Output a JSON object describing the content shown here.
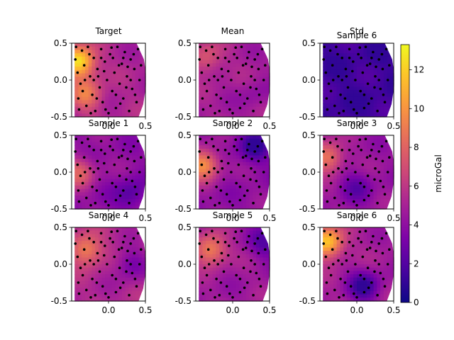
{
  "colors": {
    "colormap": "plasma",
    "points": "#000000",
    "axes": "#000000"
  },
  "chart_data": {
    "type": "contour",
    "colormap": "plasma",
    "x_ticks": [
      "0.0",
      "0.5"
    ],
    "y_ticks": [
      "0.5",
      "0.0",
      "-0.5"
    ],
    "xlim": [
      -0.5,
      0.5
    ],
    "ylim": [
      -0.5,
      0.5
    ],
    "colorbar": {
      "label": "microGal",
      "min": 0,
      "max": 13.3,
      "ticks": [
        "0",
        "2",
        "4",
        "6",
        "8",
        "10",
        "12"
      ]
    },
    "panels": [
      {
        "title": "Target",
        "field_min": 1.0,
        "field_max": 13.0,
        "hotspots": [
          {
            "x": -0.4,
            "y": 0.25,
            "v": 13.0
          },
          {
            "x": -0.3,
            "y": -0.2,
            "v": 9.0
          }
        ]
      },
      {
        "title": "Mean",
        "field_min": 3.5,
        "field_max": 7.5,
        "hotspots": [
          {
            "x": -0.35,
            "y": 0.3,
            "v": 7.5
          },
          {
            "x": 0.3,
            "y": -0.2,
            "v": 4.0
          }
        ]
      },
      {
        "title": "Std",
        "field_min": 1.0,
        "field_max": 2.2,
        "hotspots": [
          {
            "x": -0.3,
            "y": 0.3,
            "v": 2.2
          }
        ]
      },
      {
        "title": "Sample 6",
        "field_min": 1.0,
        "field_max": 2.2,
        "hotspots": []
      },
      {
        "title": "Sample 1",
        "field_min": 2.0,
        "field_max": 8.0,
        "hotspots": [
          {
            "x": -0.4,
            "y": 0.0,
            "v": 8.0
          },
          {
            "x": 0.3,
            "y": -0.3,
            "v": 2.0
          }
        ]
      },
      {
        "title": "Sample 2",
        "field_min": 1.0,
        "field_max": 10.0,
        "hotspots": [
          {
            "x": -0.4,
            "y": 0.1,
            "v": 10.0
          },
          {
            "x": 0.3,
            "y": 0.35,
            "v": 1.0
          }
        ]
      },
      {
        "title": "Sample 3",
        "field_min": 2.0,
        "field_max": 9.0,
        "hotspots": [
          {
            "x": -0.4,
            "y": 0.2,
            "v": 9.0
          },
          {
            "x": 0.0,
            "y": -0.2,
            "v": 2.5
          }
        ]
      },
      {
        "title": "Sample 4",
        "field_min": 3.0,
        "field_max": 9.5,
        "hotspots": [
          {
            "x": -0.3,
            "y": 0.2,
            "v": 9.5
          },
          {
            "x": 0.3,
            "y": 0.0,
            "v": 3.0
          }
        ]
      },
      {
        "title": "Sample 5",
        "field_min": 2.0,
        "field_max": 9.5,
        "hotspots": [
          {
            "x": -0.3,
            "y": 0.2,
            "v": 9.5
          },
          {
            "x": 0.45,
            "y": 0.3,
            "v": 2.0
          }
        ]
      },
      {
        "title": "Sample 6",
        "field_min": 1.0,
        "field_max": 12.0,
        "hotspots": [
          {
            "x": -0.4,
            "y": 0.3,
            "v": 12.0
          },
          {
            "x": 0.1,
            "y": -0.3,
            "v": 1.0
          }
        ]
      }
    ],
    "sample_points": [
      [
        -0.45,
        0.28
      ],
      [
        -0.42,
        0.1
      ],
      [
        -0.38,
        -0.05
      ],
      [
        -0.36,
        0.4
      ],
      [
        -0.33,
        0.2
      ],
      [
        -0.3,
        -0.35
      ],
      [
        -0.28,
        0.45
      ],
      [
        -0.25,
        0.05
      ],
      [
        -0.22,
        -0.2
      ],
      [
        -0.2,
        0.3
      ],
      [
        -0.18,
        -0.42
      ],
      [
        -0.15,
        0.15
      ],
      [
        -0.12,
        -0.1
      ],
      [
        -0.1,
        0.42
      ],
      [
        -0.08,
        -0.3
      ],
      [
        -0.05,
        0.25
      ],
      [
        -0.02,
        0.0
      ],
      [
        0.0,
        -0.45
      ],
      [
        0.02,
        0.35
      ],
      [
        0.05,
        -0.15
      ],
      [
        0.08,
        0.1
      ],
      [
        0.1,
        -0.38
      ],
      [
        0.12,
        0.45
      ],
      [
        0.15,
        -0.05
      ],
      [
        0.18,
        0.22
      ],
      [
        0.2,
        -0.25
      ],
      [
        0.22,
        0.38
      ],
      [
        0.25,
        0.05
      ],
      [
        0.28,
        -0.42
      ],
      [
        0.3,
        0.28
      ],
      [
        0.32,
        -0.12
      ],
      [
        0.35,
        0.15
      ],
      [
        0.38,
        -0.3
      ],
      [
        0.4,
        0.42
      ],
      [
        0.42,
        0.0
      ],
      [
        -0.4,
        -0.4
      ],
      [
        -0.35,
        -0.15
      ],
      [
        -0.26,
        0.35
      ],
      [
        -0.16,
        -0.25
      ],
      [
        -0.06,
        0.12
      ],
      [
        0.06,
        0.3
      ],
      [
        0.16,
        -0.32
      ],
      [
        0.26,
        0.18
      ],
      [
        0.36,
        -0.2
      ],
      [
        -0.44,
        0.45
      ],
      [
        -0.32,
        0.0
      ],
      [
        -0.24,
        -0.45
      ],
      [
        -0.14,
        0.05
      ],
      [
        -0.04,
        -0.4
      ],
      [
        0.04,
        0.44
      ],
      [
        0.14,
        0.2
      ],
      [
        0.24,
        -0.1
      ],
      [
        0.34,
        0.35
      ],
      [
        0.44,
        0.2
      ],
      [
        -0.41,
        -0.25
      ],
      [
        -0.2,
        0.0
      ],
      [
        0.1,
        -0.2
      ],
      [
        0.3,
        0.0
      ],
      [
        0.2,
        0.3
      ],
      [
        -0.1,
        0.3
      ]
    ]
  }
}
